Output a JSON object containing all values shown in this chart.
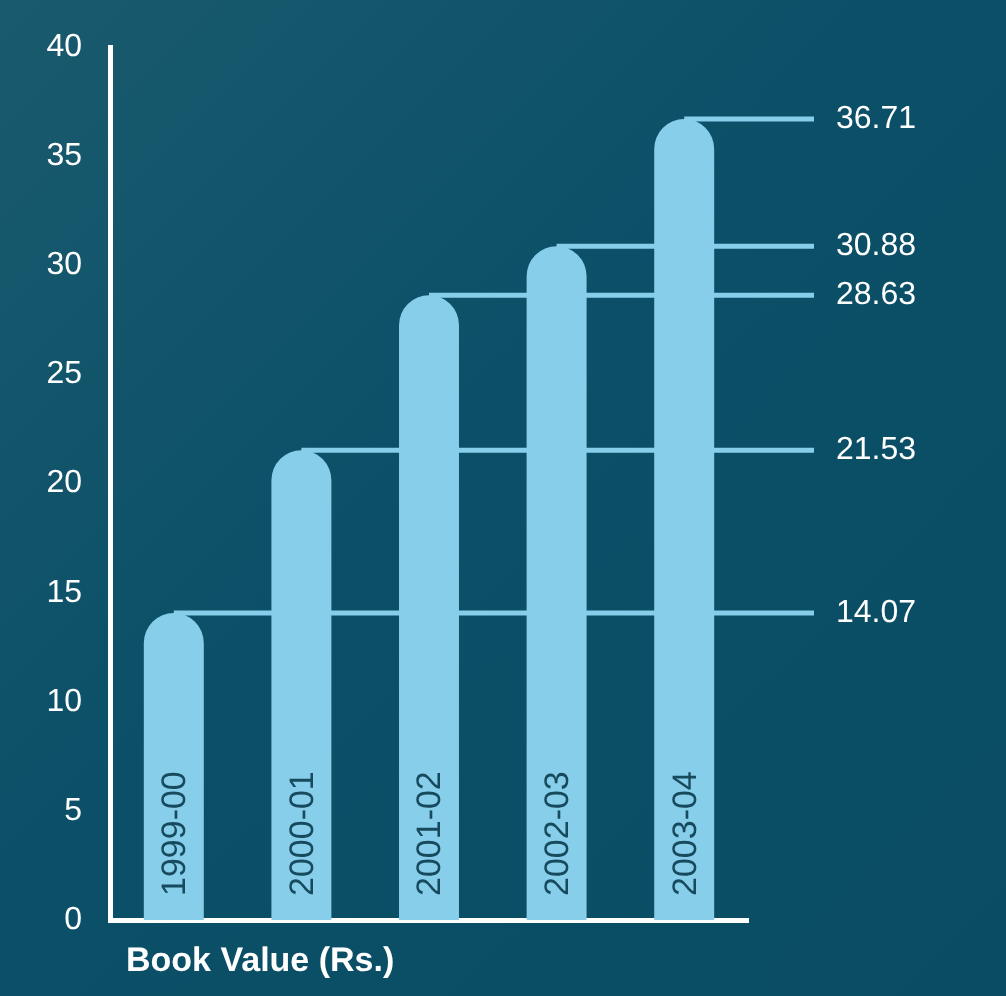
{
  "chart_data": {
    "type": "bar",
    "title": "Book Value (Rs.)",
    "categories": [
      "1999-00",
      "2000-01",
      "2001-02",
      "2002-03",
      "2003-04"
    ],
    "values": [
      14.07,
      21.53,
      28.63,
      30.88,
      36.71
    ],
    "color": "#87ceeb",
    "ylim": [
      0,
      40
    ],
    "yticks": [
      0,
      5,
      10,
      15,
      20,
      25,
      30,
      35,
      40
    ],
    "ref_lines": [
      {
        "axis": "y",
        "value": 14.07,
        "label": "14.07",
        "color": "#87ceeb"
      },
      {
        "axis": "y",
        "value": 21.53,
        "label": "21.53",
        "color": "#87ceeb"
      },
      {
        "axis": "y",
        "value": 28.63,
        "label": "28.63",
        "color": "#87ceeb"
      },
      {
        "axis": "y",
        "value": 30.88,
        "label": "30.88",
        "color": "#87ceeb"
      },
      {
        "axis": "y",
        "value": 36.71,
        "label": "36.71",
        "color": "#87ceeb"
      }
    ]
  }
}
